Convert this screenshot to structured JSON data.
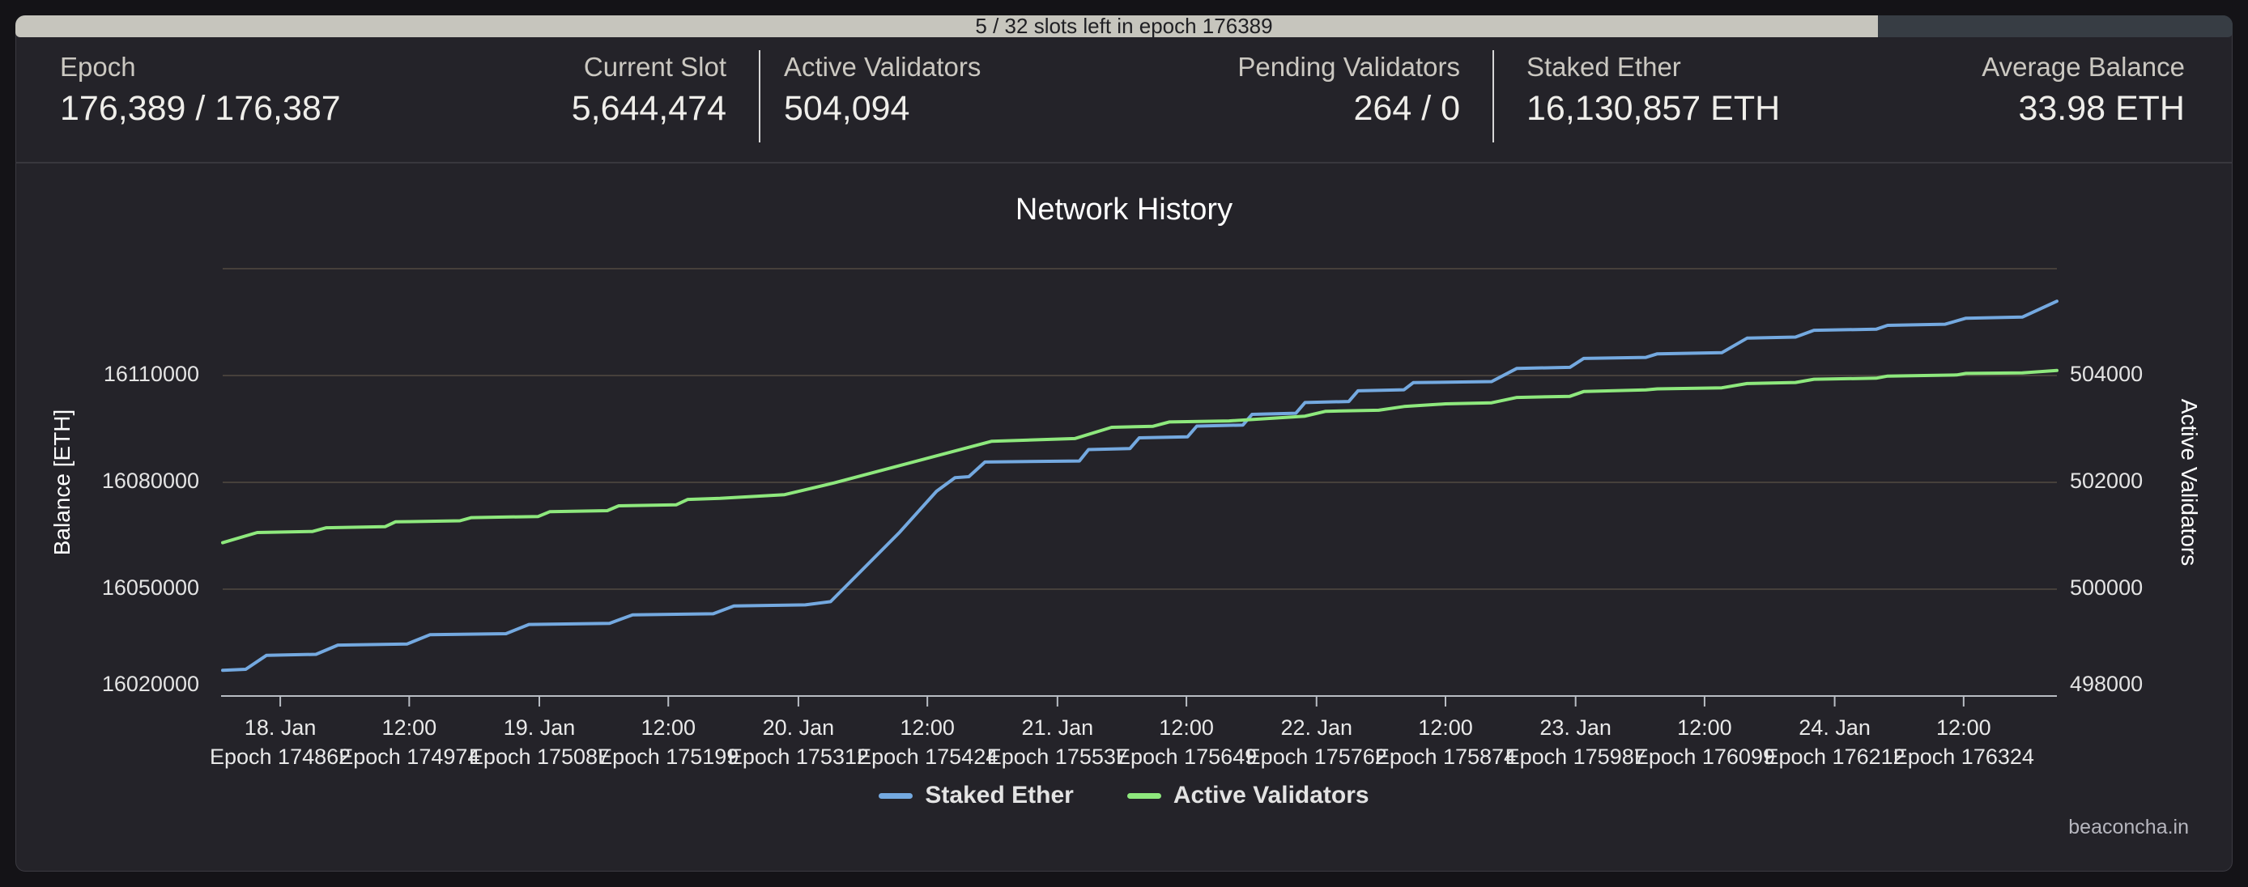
{
  "progress_bar": {
    "text": "5 / 32 slots left in epoch 176389",
    "fraction_filled": 0.84,
    "filled_color": "#c6c5bd",
    "track_color": "#373d44"
  },
  "stats": {
    "cells": [
      {
        "label": "Epoch",
        "value": "176,389 / 176,387"
      },
      {
        "label": "Current Slot",
        "value": "5,644,474"
      },
      {
        "label": "Active Validators",
        "value": "504,094"
      },
      {
        "label": "Pending Validators",
        "value": "264 / 0"
      },
      {
        "label": "Staked Ether",
        "value": "16,130,857 ETH"
      },
      {
        "label": "Average Balance",
        "value": "33.98 ETH"
      }
    ]
  },
  "chart_data": {
    "type": "line",
    "title": "Network History",
    "grid": true,
    "legend_position": "bottom-center",
    "watermark": "beaconcha.in",
    "x_axis": {
      "epoch_min": 174812,
      "epoch_max": 176405,
      "ticks": [
        {
          "date": "18. Jan",
          "epoch": 174862
        },
        {
          "date": "12:00",
          "epoch": 174974
        },
        {
          "date": "19. Jan",
          "epoch": 175087
        },
        {
          "date": "12:00",
          "epoch": 175199
        },
        {
          "date": "20. Jan",
          "epoch": 175312
        },
        {
          "date": "12:00",
          "epoch": 175424
        },
        {
          "date": "21. Jan",
          "epoch": 175537
        },
        {
          "date": "12:00",
          "epoch": 175649
        },
        {
          "date": "22. Jan",
          "epoch": 175762
        },
        {
          "date": "12:00",
          "epoch": 175874
        },
        {
          "date": "23. Jan",
          "epoch": 175987
        },
        {
          "date": "12:00",
          "epoch": 176099
        },
        {
          "date": "24. Jan",
          "epoch": 176212
        },
        {
          "date": "12:00",
          "epoch": 176324
        }
      ],
      "epoch_label_prefix": "Epoch"
    },
    "y_axis_left": {
      "title": "Balance [ETH]",
      "tick_values": [
        16110000,
        16080000,
        16050000,
        16020000
      ],
      "value_at_top_gridline": 16140000,
      "value_per_gridline": 30000
    },
    "y_axis_right": {
      "title": "Active Validators",
      "tick_values": [
        504000,
        502000,
        500000,
        498000
      ],
      "value_at_top_gridline": 506000,
      "value_per_gridline": 2000
    },
    "series": [
      {
        "name": "Staked Ether",
        "axis": "left",
        "color": "#74a9e0",
        "points": [
          [
            174812,
            16027200
          ],
          [
            174832,
            16027500
          ],
          [
            174850,
            16031400
          ],
          [
            174893,
            16031700
          ],
          [
            174912,
            16034300
          ],
          [
            174972,
            16034600
          ],
          [
            174992,
            16037200
          ],
          [
            175058,
            16037500
          ],
          [
            175078,
            16040100
          ],
          [
            175148,
            16040400
          ],
          [
            175168,
            16042800
          ],
          [
            175238,
            16043100
          ],
          [
            175256,
            16045300
          ],
          [
            175318,
            16045600
          ],
          [
            175340,
            16046500
          ],
          [
            175400,
            16066000
          ],
          [
            175432,
            16077500
          ],
          [
            175448,
            16081300
          ],
          [
            175460,
            16081600
          ],
          [
            175474,
            16085700
          ],
          [
            175556,
            16086000
          ],
          [
            175564,
            16089200
          ],
          [
            175600,
            16089500
          ],
          [
            175608,
            16092500
          ],
          [
            175650,
            16092800
          ],
          [
            175658,
            16095800
          ],
          [
            175698,
            16096100
          ],
          [
            175706,
            16099100
          ],
          [
            175744,
            16099400
          ],
          [
            175752,
            16102400
          ],
          [
            175790,
            16102700
          ],
          [
            175798,
            16105700
          ],
          [
            175838,
            16106000
          ],
          [
            175846,
            16108000
          ],
          [
            175914,
            16108300
          ],
          [
            175936,
            16112000
          ],
          [
            175982,
            16112300
          ],
          [
            175994,
            16114800
          ],
          [
            176048,
            16115100
          ],
          [
            176058,
            16116100
          ],
          [
            176114,
            16116400
          ],
          [
            176136,
            16120500
          ],
          [
            176178,
            16120800
          ],
          [
            176194,
            16122700
          ],
          [
            176248,
            16123000
          ],
          [
            176258,
            16124100
          ],
          [
            176308,
            16124400
          ],
          [
            176326,
            16126100
          ],
          [
            176375,
            16126400
          ],
          [
            176405,
            16130857
          ]
        ]
      },
      {
        "name": "Active Validators",
        "axis": "right",
        "color": "#8ee87d",
        "points": [
          [
            174812,
            500870
          ],
          [
            174842,
            501060
          ],
          [
            174890,
            501080
          ],
          [
            174902,
            501150
          ],
          [
            174953,
            501170
          ],
          [
            174962,
            501260
          ],
          [
            175018,
            501280
          ],
          [
            175028,
            501340
          ],
          [
            175086,
            501360
          ],
          [
            175096,
            501450
          ],
          [
            175146,
            501470
          ],
          [
            175156,
            501560
          ],
          [
            175206,
            501580
          ],
          [
            175216,
            501680
          ],
          [
            175244,
            501700
          ],
          [
            175300,
            501770
          ],
          [
            175343,
            501990
          ],
          [
            175480,
            502770
          ],
          [
            175552,
            502820
          ],
          [
            175584,
            503030
          ],
          [
            175620,
            503050
          ],
          [
            175634,
            503130
          ],
          [
            175686,
            503150
          ],
          [
            175752,
            503240
          ],
          [
            175770,
            503330
          ],
          [
            175816,
            503350
          ],
          [
            175838,
            503420
          ],
          [
            175874,
            503470
          ],
          [
            175914,
            503490
          ],
          [
            175936,
            503590
          ],
          [
            175982,
            503610
          ],
          [
            175994,
            503700
          ],
          [
            176048,
            503730
          ],
          [
            176058,
            503750
          ],
          [
            176114,
            503770
          ],
          [
            176136,
            503850
          ],
          [
            176178,
            503870
          ],
          [
            176194,
            503930
          ],
          [
            176248,
            503950
          ],
          [
            176258,
            503990
          ],
          [
            176318,
            504010
          ],
          [
            176326,
            504040
          ],
          [
            176375,
            504050
          ],
          [
            176405,
            504094
          ]
        ]
      }
    ]
  }
}
